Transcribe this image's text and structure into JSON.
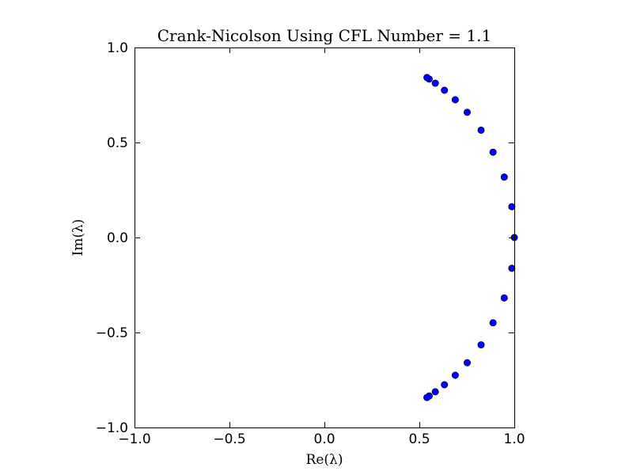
{
  "chart_data": {
    "type": "scatter",
    "title": "Crank-Nicolson Using CFL Number = 1.1",
    "xlabel": "Re(λ)",
    "ylabel": "Im(λ)",
    "xlim": [
      -1.0,
      1.0
    ],
    "ylim": [
      -1.0,
      1.0
    ],
    "xticks": [
      -1.0,
      -0.5,
      0.0,
      0.5,
      1.0
    ],
    "xtick_labels": [
      "−1.0",
      "−0.5",
      "0.0",
      "0.5",
      "1.0"
    ],
    "yticks": [
      -1.0,
      -0.5,
      0.0,
      0.5,
      1.0
    ],
    "ytick_labels": [
      "−1.0",
      "−0.5",
      "0.0",
      "0.5",
      "1.0"
    ],
    "grid": false,
    "marker_color": "#0000ff",
    "points": [
      {
        "x": 1.0,
        "y": 0.0
      },
      {
        "x": 0.987,
        "y": 0.162
      },
      {
        "x": 0.947,
        "y": 0.318
      },
      {
        "x": 0.888,
        "y": 0.449
      },
      {
        "x": 0.825,
        "y": 0.565
      },
      {
        "x": 0.752,
        "y": 0.659
      },
      {
        "x": 0.689,
        "y": 0.725
      },
      {
        "x": 0.632,
        "y": 0.775
      },
      {
        "x": 0.584,
        "y": 0.812
      },
      {
        "x": 0.552,
        "y": 0.834
      },
      {
        "x": 0.54,
        "y": 0.842
      },
      {
        "x": 0.987,
        "y": -0.162
      },
      {
        "x": 0.947,
        "y": -0.318
      },
      {
        "x": 0.888,
        "y": -0.449
      },
      {
        "x": 0.825,
        "y": -0.565
      },
      {
        "x": 0.752,
        "y": -0.659
      },
      {
        "x": 0.689,
        "y": -0.725
      },
      {
        "x": 0.632,
        "y": -0.775
      },
      {
        "x": 0.584,
        "y": -0.812
      },
      {
        "x": 0.552,
        "y": -0.834
      },
      {
        "x": 0.54,
        "y": -0.842
      }
    ]
  }
}
